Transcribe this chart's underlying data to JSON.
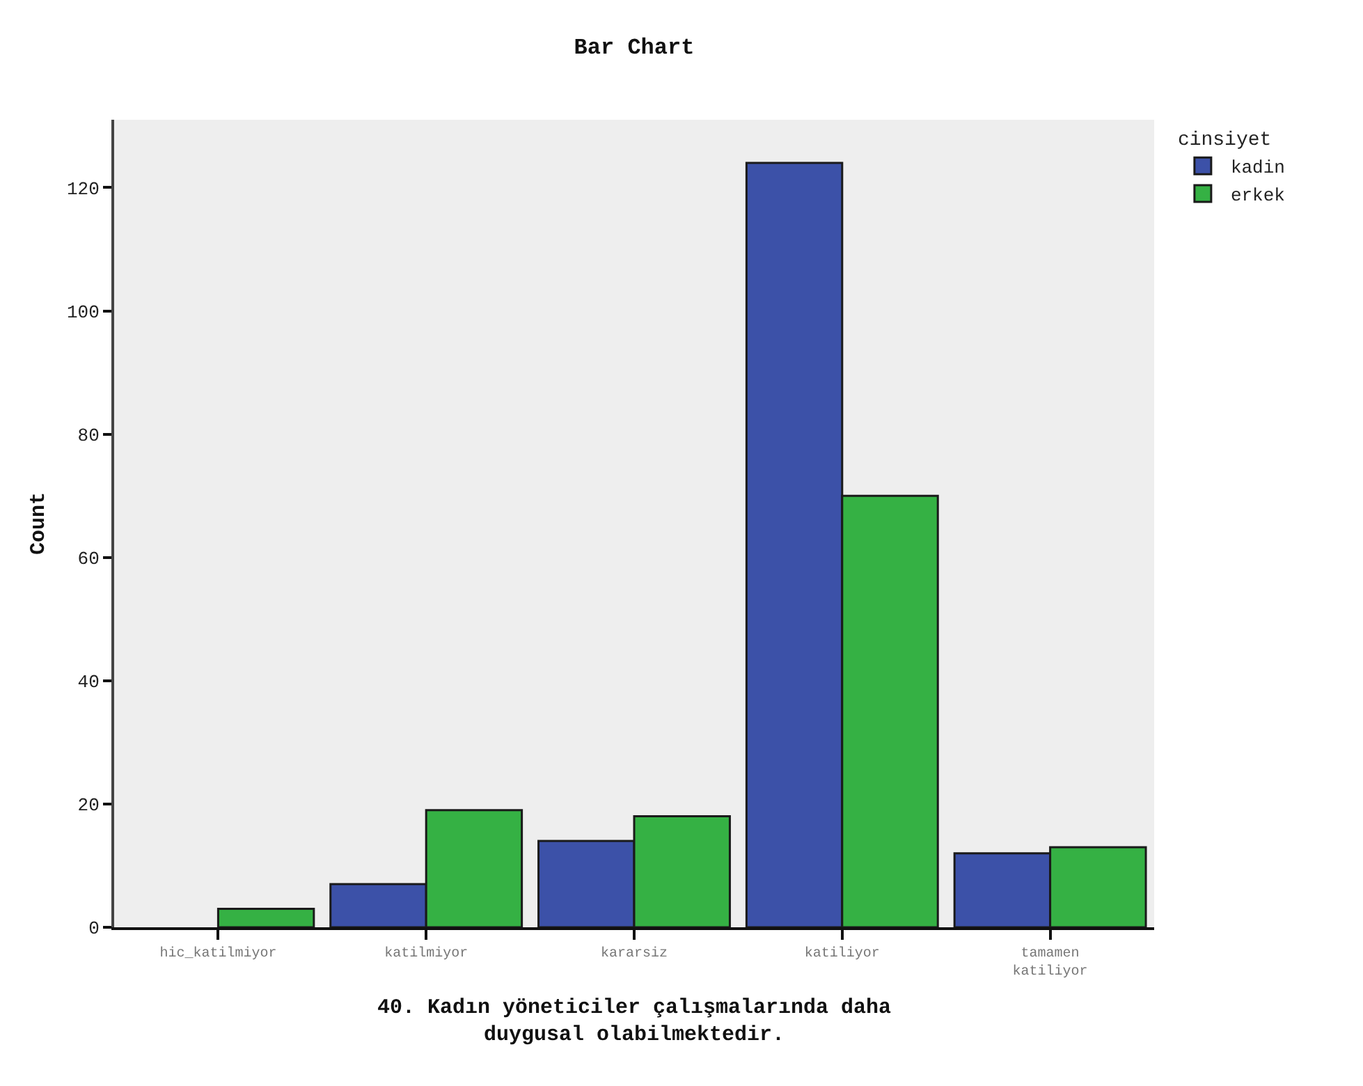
{
  "chart_data": {
    "type": "bar",
    "title": "Bar Chart",
    "xlabel": "40. Kadın yöneticiler çalışmalarında daha duygusal olabilmektedir.",
    "ylabel": "Count",
    "legend_title": "cinsiyet",
    "categories": [
      "hic_katilmiyor",
      "katilmiyor",
      "kararsiz",
      "katiliyor",
      "tamamen katiliyor"
    ],
    "series": [
      {
        "name": "kadin",
        "color": "#3c51a8",
        "values": [
          null,
          7,
          14,
          124,
          12
        ]
      },
      {
        "name": "erkek",
        "color": "#35b144",
        "values": [
          3,
          19,
          18,
          70,
          13
        ]
      }
    ],
    "ylim": [
      0,
      131
    ],
    "yticks": [
      0,
      20,
      40,
      60,
      80,
      100,
      120
    ],
    "grid": false,
    "legend": "top right"
  }
}
